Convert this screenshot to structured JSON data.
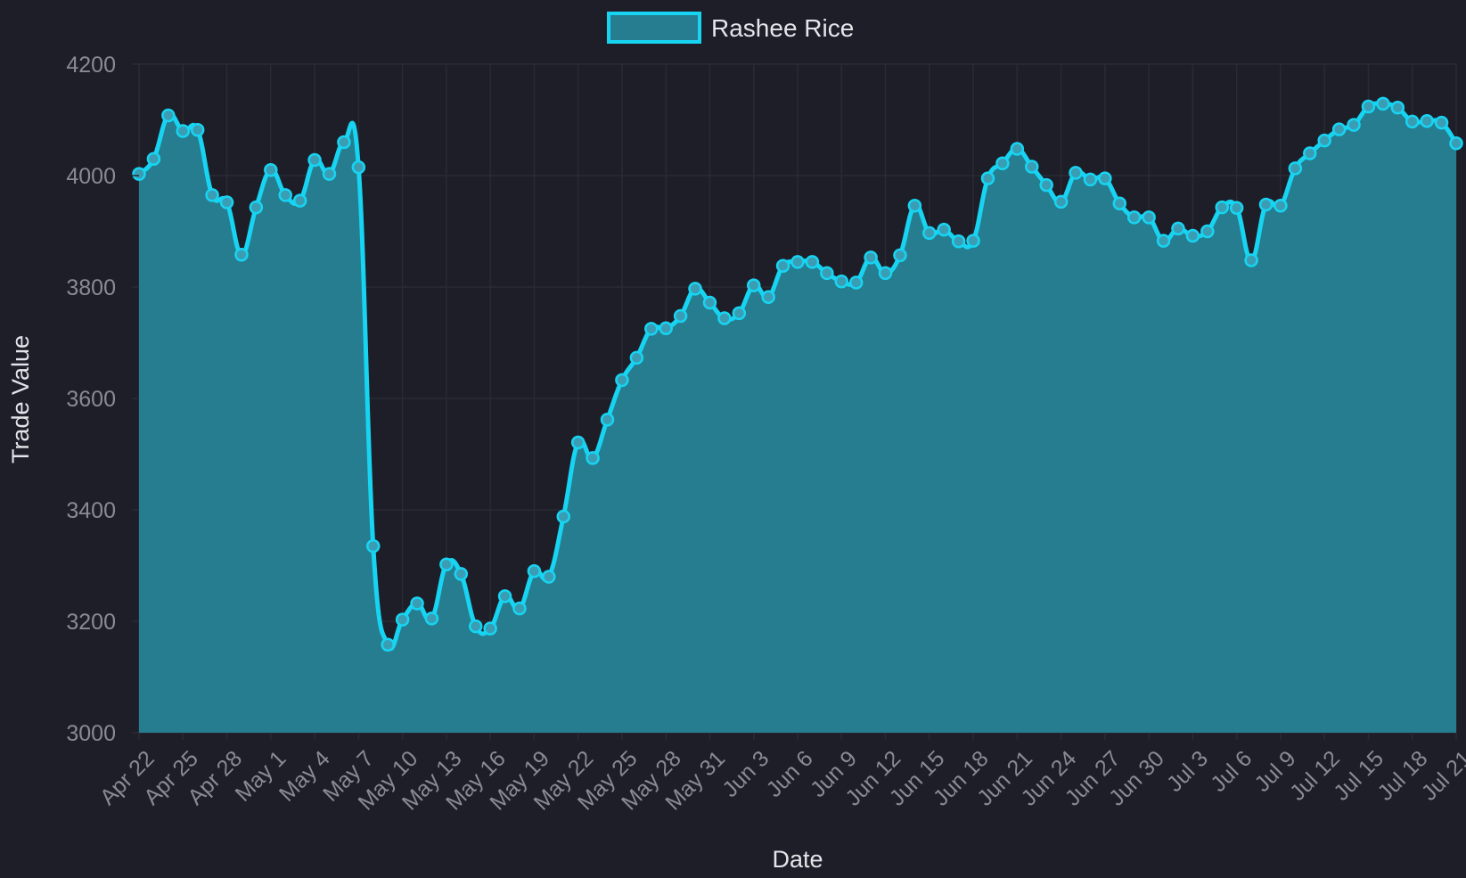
{
  "chart_data": {
    "type": "area",
    "xlabel": "Date",
    "ylabel": "Trade Value",
    "ylim": [
      3000,
      4200
    ],
    "y_ticks": [
      "3000",
      "3200",
      "3400",
      "3600",
      "3800",
      "4000",
      "4200"
    ],
    "x_tick_labels": [
      "Apr 22",
      "Apr 25",
      "Apr 28",
      "May 1",
      "May 4",
      "May 7",
      "May 10",
      "May 13",
      "May 16",
      "May 19",
      "May 22",
      "May 25",
      "May 28",
      "May 31",
      "Jun 3",
      "Jun 6",
      "Jun 9",
      "Jun 12",
      "Jun 15",
      "Jun 18",
      "Jun 21",
      "Jun 24",
      "Jun 27",
      "Jun 30",
      "Jul 3",
      "Jul 6",
      "Jul 9",
      "Jul 12",
      "Jul 15",
      "Jul 18",
      "Jul 21"
    ],
    "grid": true,
    "legend_position": "top-center",
    "colors": {
      "line": "#17d4f2",
      "fill": "#257d8f",
      "background": "#1e1e28",
      "grid": "#2a2a34"
    },
    "series": [
      {
        "name": "Rashee Rice",
        "values": [
          4003,
          4030,
          4108,
          4080,
          4082,
          3965,
          3952,
          3858,
          3943,
          4010,
          3965,
          3955,
          4028,
          4003,
          4060,
          4015,
          3335,
          3158,
          3203,
          3232,
          3205,
          3302,
          3285,
          3191,
          3187,
          3245,
          3223,
          3290,
          3280,
          3388,
          3521,
          3493,
          3562,
          3633,
          3673,
          3725,
          3726,
          3748,
          3797,
          3772,
          3744,
          3753,
          3803,
          3782,
          3838,
          3845,
          3845,
          3825,
          3810,
          3808,
          3853,
          3825,
          3857,
          3946,
          3897,
          3903,
          3882,
          3883,
          3995,
          4022,
          4048,
          4016,
          3983,
          3953,
          4005,
          3993,
          3995,
          3950,
          3925,
          3925,
          3883,
          3905,
          3892,
          3900,
          3943,
          3942,
          3848,
          3948,
          3946,
          4013,
          4040,
          4063,
          4083,
          4091,
          4124,
          4129,
          4122,
          4097,
          4098,
          4095,
          4058
        ]
      }
    ]
  }
}
